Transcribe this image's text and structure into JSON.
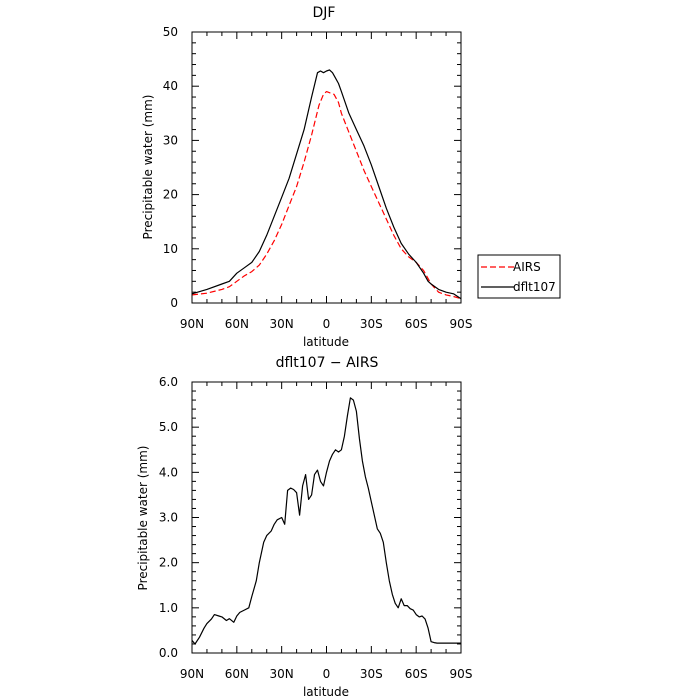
{
  "chart_data": [
    {
      "type": "line",
      "title": "DJF",
      "xlabel": "latitude",
      "ylabel": "Precipitable water  (mm)",
      "xlim": [
        -90,
        90
      ],
      "ylim": [
        0,
        50
      ],
      "x_tick_values": [
        -90,
        -60,
        -30,
        0,
        30,
        60,
        90
      ],
      "x_tick_labels": [
        "90N",
        "60N",
        "30N",
        "0",
        "30S",
        "60S",
        "90S"
      ],
      "y_tick_values": [
        0,
        10,
        20,
        30,
        40,
        50
      ],
      "y_tick_labels": [
        "0",
        "10",
        "20",
        "30",
        "40",
        "50"
      ],
      "legend": {
        "position": "right",
        "entries": [
          "AIRS",
          "dflt107"
        ]
      },
      "series": [
        {
          "name": "AIRS",
          "color": "#ff0000",
          "style": "dashed",
          "x": [
            -90,
            -80,
            -70,
            -65,
            -60,
            -55,
            -50,
            -45,
            -40,
            -35,
            -30,
            -25,
            -20,
            -15,
            -10,
            -5,
            -2,
            0,
            2,
            5,
            8,
            10,
            15,
            20,
            25,
            30,
            35,
            40,
            45,
            50,
            55,
            60,
            65,
            68,
            70,
            75,
            80,
            85,
            90
          ],
          "y": [
            1.5,
            1.8,
            2.5,
            3.0,
            4.0,
            5.0,
            5.8,
            7.0,
            9.0,
            11.5,
            14.5,
            18.0,
            21.5,
            26.0,
            31.0,
            36.5,
            38.5,
            39.0,
            38.8,
            38.5,
            37.0,
            35.0,
            31.5,
            28.0,
            24.5,
            21.5,
            18.5,
            15.5,
            12.5,
            10.0,
            8.5,
            7.5,
            6.0,
            4.5,
            3.5,
            2.0,
            1.5,
            1.2,
            0.8
          ]
        },
        {
          "name": "dflt107",
          "color": "#000000",
          "style": "solid",
          "x": [
            -90,
            -80,
            -70,
            -65,
            -60,
            -55,
            -50,
            -45,
            -40,
            -35,
            -30,
            -25,
            -20,
            -15,
            -10,
            -6,
            -4,
            -2,
            0,
            2,
            4,
            6,
            8,
            10,
            15,
            20,
            25,
            30,
            35,
            40,
            45,
            50,
            55,
            60,
            65,
            68,
            70,
            75,
            80,
            85,
            90
          ],
          "y": [
            1.7,
            2.5,
            3.5,
            4.0,
            5.5,
            6.5,
            7.5,
            9.5,
            12.5,
            16.0,
            19.5,
            23.0,
            27.5,
            32.0,
            38.0,
            42.5,
            42.8,
            42.5,
            42.8,
            43.0,
            42.5,
            41.5,
            40.5,
            39.0,
            35.0,
            32.0,
            29.0,
            25.5,
            21.5,
            17.5,
            14.0,
            11.0,
            9.0,
            7.5,
            5.5,
            4.0,
            3.5,
            2.5,
            2.0,
            1.7,
            0.8
          ]
        }
      ]
    },
    {
      "type": "line",
      "title": "dflt107 − AIRS",
      "xlabel": "latitude",
      "ylabel": "Precipitable water  (mm)",
      "xlim": [
        -90,
        90
      ],
      "ylim": [
        0,
        6
      ],
      "x_tick_values": [
        -90,
        -60,
        -30,
        0,
        30,
        60,
        90
      ],
      "x_tick_labels": [
        "90N",
        "60N",
        "30N",
        "0",
        "30S",
        "60S",
        "90S"
      ],
      "y_tick_values": [
        0,
        1,
        2,
        3,
        4,
        5,
        6
      ],
      "y_tick_labels": [
        "0.0",
        "1.0",
        "2.0",
        "3.0",
        "4.0",
        "5.0",
        "6.0"
      ],
      "series": [
        {
          "name": "dflt107 − AIRS",
          "color": "#000000",
          "style": "solid",
          "x": [
            -90,
            -88,
            -85,
            -82,
            -80,
            -77,
            -75,
            -72,
            -70,
            -67,
            -65,
            -62,
            -60,
            -58,
            -55,
            -52,
            -50,
            -47,
            -45,
            -42,
            -40,
            -37,
            -35,
            -33,
            -30,
            -28,
            -26,
            -24,
            -22,
            -20,
            -18,
            -16,
            -14,
            -12,
            -10,
            -8,
            -6,
            -4,
            -2,
            0,
            2,
            4,
            6,
            8,
            10,
            12,
            14,
            16,
            18,
            20,
            22,
            24,
            26,
            28,
            30,
            32,
            34,
            36,
            38,
            40,
            42,
            44,
            46,
            48,
            50,
            52,
            54,
            56,
            58,
            60,
            62,
            64,
            66,
            68,
            70,
            72,
            74,
            76,
            78,
            80,
            82,
            84,
            86,
            88,
            90
          ],
          "y": [
            0.28,
            0.2,
            0.35,
            0.55,
            0.65,
            0.75,
            0.85,
            0.82,
            0.8,
            0.72,
            0.76,
            0.68,
            0.82,
            0.9,
            0.95,
            1.0,
            1.25,
            1.6,
            2.0,
            2.45,
            2.6,
            2.7,
            2.85,
            2.95,
            3.0,
            2.85,
            3.6,
            3.65,
            3.62,
            3.55,
            3.05,
            3.7,
            3.95,
            3.4,
            3.5,
            3.95,
            4.05,
            3.8,
            3.7,
            4.0,
            4.25,
            4.4,
            4.5,
            4.45,
            4.5,
            4.8,
            5.25,
            5.65,
            5.6,
            5.35,
            4.75,
            4.25,
            3.9,
            3.65,
            3.35,
            3.05,
            2.75,
            2.65,
            2.45,
            2.0,
            1.6,
            1.3,
            1.1,
            1.0,
            1.2,
            1.05,
            1.05,
            0.98,
            0.95,
            0.85,
            0.8,
            0.82,
            0.75,
            0.55,
            0.25,
            0.23,
            0.22,
            0.22,
            0.22,
            0.22,
            0.22,
            0.22,
            0.22,
            0.22,
            0.22
          ]
        }
      ]
    }
  ]
}
